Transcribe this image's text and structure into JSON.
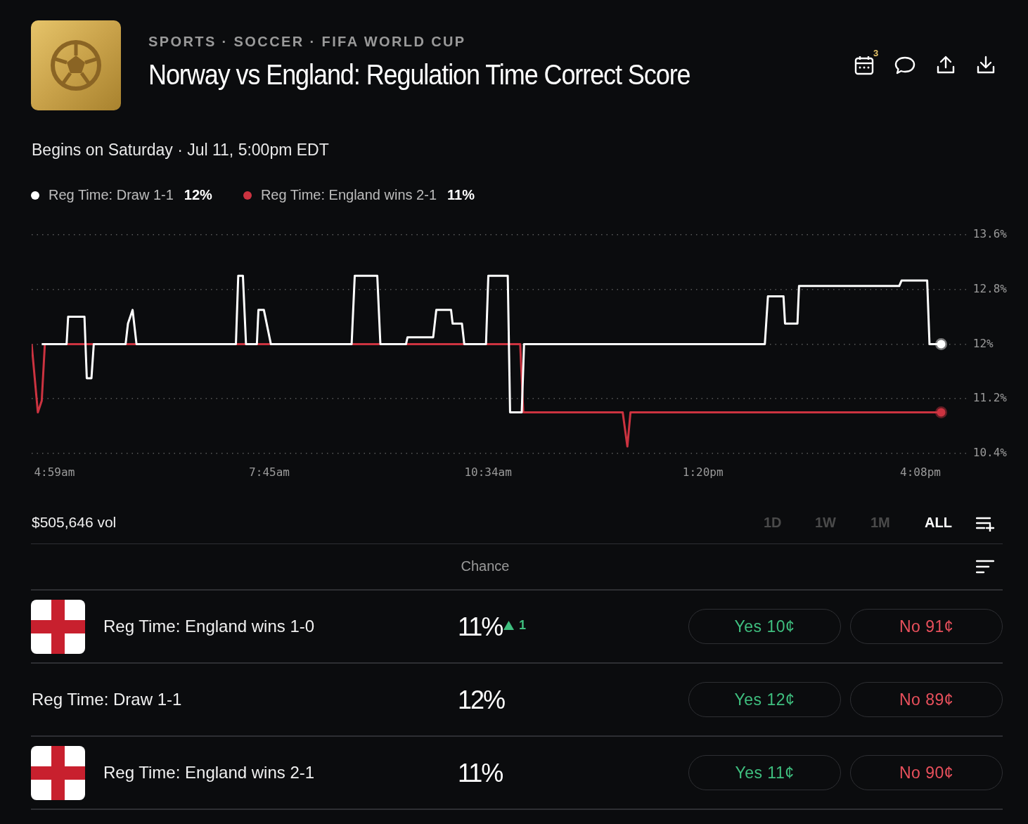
{
  "chart_data": {
    "type": "line",
    "title": "Norway vs England: Regulation Time Correct Score",
    "subtitle": "Begins on Saturday · Jul 11, 5:00pm EDT",
    "annotations": [
      "SPORTS · SOCCER · FIFA WORLD CUP",
      "3",
      "12%",
      "11%",
      "$505,646 vol",
      "1D",
      "1W",
      "1M",
      "ALL",
      "Chance",
      "Reg Time: England wins 1-0",
      "11%",
      "1",
      "Yes 10¢",
      "No 91¢",
      "Reg Time: Draw 1-1",
      "12%",
      "Yes 12¢",
      "No 89¢",
      "Reg Time: England wins 2-1",
      "11%",
      "Yes 11¢",
      "No 90¢"
    ],
    "series": [
      {
        "name": "Reg Time: Draw 1-1",
        "color": "#ffffff",
        "x": [
          4.82,
          5.14,
          5.16,
          5.37,
          5.4,
          5.46,
          5.49,
          5.9,
          5.93,
          5.99,
          6.04,
          7.32,
          7.35,
          7.41,
          7.45,
          7.59,
          7.61,
          7.68,
          7.77,
          8.81,
          8.85,
          9.14,
          9.18,
          9.51,
          9.53,
          9.86,
          9.9,
          10.09,
          10.11,
          10.23,
          10.26,
          10.54,
          10.57,
          10.82,
          10.85,
          11.0,
          11.03,
          14.13,
          14.17,
          14.37,
          14.39,
          14.55,
          14.57,
          15.86,
          15.89,
          16.22,
          16.25,
          16.4
        ],
        "values": [
          12,
          12,
          12.4,
          12.4,
          11.5,
          11.5,
          12,
          12,
          12.3,
          12.5,
          12,
          12,
          13,
          13,
          12,
          12,
          12.5,
          12.5,
          12,
          12,
          13,
          13,
          12,
          12,
          12.1,
          12.1,
          12.5,
          12.5,
          12.3,
          12.3,
          12,
          12,
          13,
          13,
          11,
          11,
          12,
          12,
          12.7,
          12.7,
          12.3,
          12.3,
          12.85,
          12.85,
          12.93,
          12.93,
          12,
          12
        ]
      },
      {
        "name": "Reg Time: England wins 2-1",
        "color": "#cc3340",
        "x": [
          4.69,
          4.77,
          4.82,
          4.86,
          10.98,
          11.02,
          12.3,
          12.36,
          12.4,
          16.4
        ],
        "values": [
          12,
          11,
          11.17,
          12,
          12,
          11,
          11,
          10.5,
          11,
          11
        ]
      }
    ],
    "xlim": [
      4.69,
      16.72
    ],
    "xticks": [
      {
        "value": 4.983,
        "label": "4:59am"
      },
      {
        "value": 7.75,
        "label": "7:45am"
      },
      {
        "value": 10.567,
        "label": "10:34am"
      },
      {
        "value": 13.333,
        "label": "1:20pm"
      },
      {
        "value": 16.133,
        "label": "4:08pm"
      }
    ],
    "ylim": [
      10.4,
      13.6
    ],
    "yticks": [
      {
        "value": 10.4,
        "label": "10.4%"
      },
      {
        "value": 11.2,
        "label": "11.2%"
      },
      {
        "value": 12,
        "label": "12%"
      },
      {
        "value": 12.8,
        "label": "12.8%"
      },
      {
        "value": 13.6,
        "label": "13.6%"
      }
    ],
    "grid": "y",
    "legend": "top left",
    "line_style": "solid"
  }
}
